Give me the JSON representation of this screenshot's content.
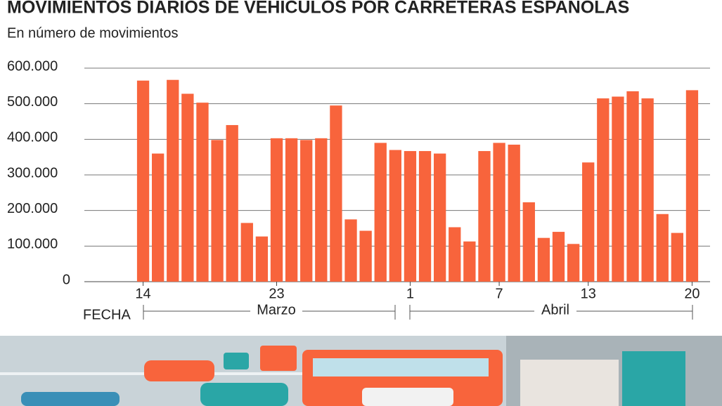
{
  "chart_data": {
    "type": "bar",
    "title": "MOVIMIENTOS DIARIOS DE VEHÍCULOS POR CARRETERAS ESPAÑOLAS",
    "subtitle": "En número de movimientos",
    "x_axis_label": "FECHA",
    "period_labels": [
      "Marzo",
      "Abril"
    ],
    "categories": [
      "14",
      null,
      null,
      null,
      null,
      null,
      null,
      null,
      null,
      "23",
      null,
      null,
      null,
      null,
      null,
      null,
      null,
      null,
      "1",
      null,
      null,
      null,
      null,
      null,
      "7",
      null,
      null,
      null,
      null,
      null,
      "13",
      null,
      null,
      null,
      null,
      null,
      null,
      "20"
    ],
    "values": [
      565000,
      360000,
      567000,
      528000,
      503000,
      398000,
      440000,
      165000,
      127000,
      403000,
      403000,
      398000,
      403000,
      495000,
      175000,
      143000,
      390000,
      370000,
      367000,
      367000,
      360000,
      153000,
      113000,
      367000,
      390000,
      385000,
      223000,
      123000,
      140000,
      106000,
      335000,
      515000,
      520000,
      535000,
      515000,
      190000,
      137000,
      538000
    ],
    "color": "#f8643c",
    "ylim": [
      0,
      600000
    ],
    "yticks": [
      0,
      {
        "value": 100000,
        "label": "100.000"
      },
      {
        "value": 200000,
        "label": "200.000"
      },
      {
        "value": 300000,
        "label": "300.000"
      },
      {
        "value": 400000,
        "label": "400.000"
      },
      {
        "value": 500000,
        "label": "500.000"
      },
      {
        "value": 600000,
        "label": "600.000"
      }
    ],
    "grid": true
  }
}
